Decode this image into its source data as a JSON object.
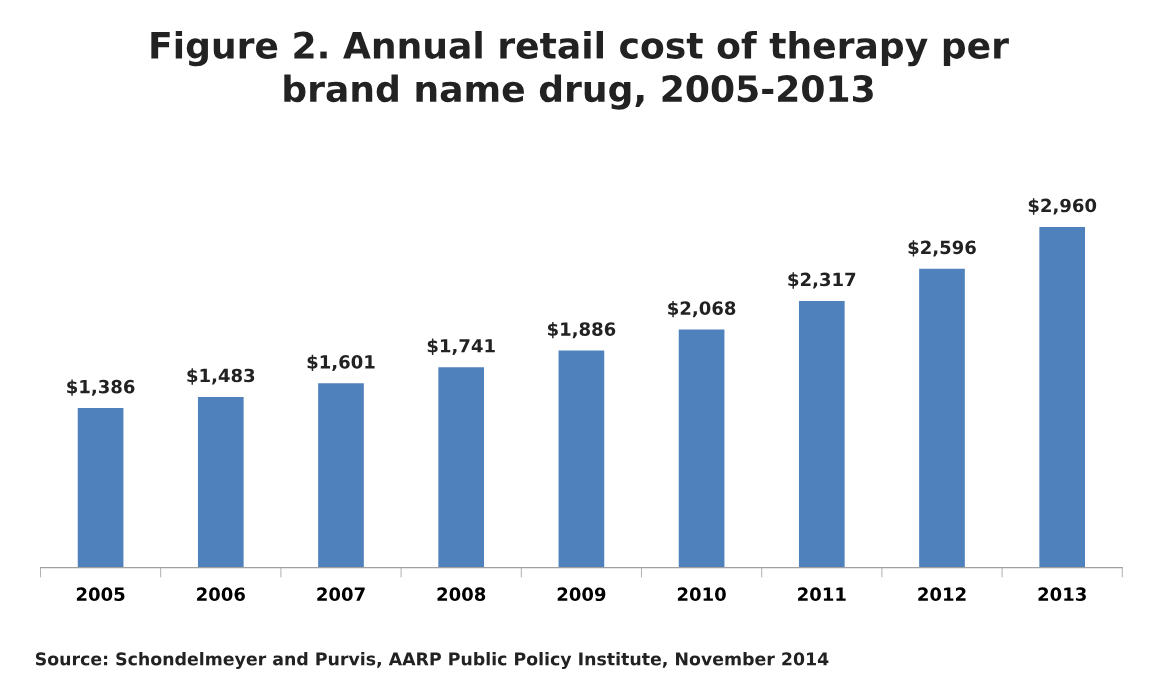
{
  "chart_data": {
    "type": "bar",
    "title": "Figure 2. Annual retail cost of therapy per\nbrand name drug, 2005-2013",
    "categories": [
      "2005",
      "2006",
      "2007",
      "2008",
      "2009",
      "2010",
      "2011",
      "2012",
      "2013"
    ],
    "values": [
      1386,
      1483,
      1601,
      1741,
      1886,
      2068,
      2317,
      2596,
      2960
    ],
    "value_labels": [
      "$1,386",
      "$1,483",
      "$1,601",
      "$1,741",
      "$1,886",
      "$2,068",
      "$2,317",
      "$2,596",
      "$2,960"
    ],
    "color": "#4f81bd",
    "grid": false,
    "legend": false,
    "tick_labels": "x",
    "annotations": [
      "Source: Schondelmeyer and Purvis, AARP Public Policy Institute, November 2014"
    ]
  }
}
